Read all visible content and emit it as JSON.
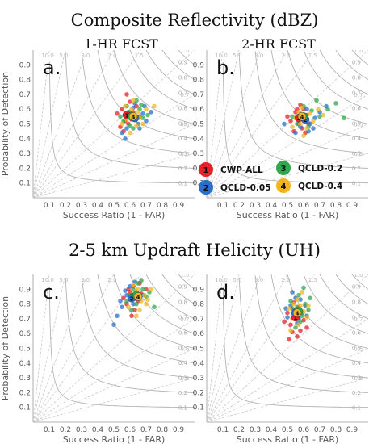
{
  "figure": {
    "sections": [
      {
        "title": "Composite Reflectivity (dBZ)"
      },
      {
        "title": "2-5 km Updraft Helicity (UH)"
      }
    ],
    "column_titles": [
      "1-HR FCST",
      "2-HR FCST"
    ],
    "legend": {
      "items": [
        {
          "number": "1",
          "label": "CWP-ALL",
          "color": "#e8202a"
        },
        {
          "number": "2",
          "label": "QCLD-0.05",
          "color": "#2a6fc9"
        },
        {
          "number": "3",
          "label": "QCLD-0.2",
          "color": "#2fa84f"
        },
        {
          "number": "4",
          "label": "QCLD-0.4",
          "color": "#f2b51f"
        }
      ]
    },
    "diagram_style": {
      "bias_lines": [
        0.3,
        0.5,
        0.7,
        1.0,
        1.5,
        2.0,
        3.0,
        5.0,
        10.0
      ],
      "csi_lines": [
        0.1,
        0.2,
        0.3,
        0.4,
        0.5,
        0.6,
        0.7,
        0.8,
        0.9
      ],
      "bias_labels": [
        "0.3",
        "0.5",
        "0.7",
        "1.0",
        "1.5",
        "2.0",
        "3.0",
        "5.0",
        "10.0"
      ],
      "csi_labels": [
        "0.1",
        "0.2",
        "0.3",
        "0.4",
        "0.5",
        "0.6",
        "0.7",
        "0.8",
        "0.9"
      ]
    }
  },
  "chart_data": [
    {
      "type": "scatter",
      "panel_label": "a.",
      "xlabel": "Success Ratio (1 - FAR)",
      "ylabel": "Probability of Detection",
      "xlim": [
        0,
        1
      ],
      "ylim": [
        0,
        1
      ],
      "x_ticks": [
        "0.1",
        "0.2",
        "0.3",
        "0.4",
        "0.5",
        "0.6",
        "0.7",
        "0.8",
        "0.9"
      ],
      "y_ticks": [
        "0.1",
        "0.2",
        "0.3",
        "0.4",
        "0.5",
        "0.6",
        "0.7",
        "0.8",
        "0.9"
      ],
      "series": [
        {
          "name": "CWP-ALL",
          "mean": [
            0.58,
            0.56
          ],
          "points": [
            [
              0.55,
              0.6
            ],
            [
              0.57,
              0.52
            ],
            [
              0.6,
              0.65
            ],
            [
              0.54,
              0.48
            ],
            [
              0.62,
              0.58
            ],
            [
              0.59,
              0.5
            ],
            [
              0.52,
              0.57
            ],
            [
              0.64,
              0.62
            ],
            [
              0.56,
              0.45
            ],
            [
              0.61,
              0.53
            ],
            [
              0.58,
              0.7
            ],
            [
              0.66,
              0.55
            ]
          ]
        },
        {
          "name": "QCLD-0.05",
          "mean": [
            0.63,
            0.54
          ],
          "points": [
            [
              0.6,
              0.58
            ],
            [
              0.65,
              0.5
            ],
            [
              0.68,
              0.57
            ],
            [
              0.58,
              0.47
            ],
            [
              0.7,
              0.52
            ],
            [
              0.62,
              0.61
            ],
            [
              0.55,
              0.44
            ],
            [
              0.73,
              0.58
            ],
            [
              0.66,
              0.47
            ],
            [
              0.63,
              0.64
            ],
            [
              0.57,
              0.4
            ],
            [
              0.69,
              0.62
            ]
          ]
        },
        {
          "name": "QCLD-0.2",
          "mean": [
            0.61,
            0.55
          ],
          "points": [
            [
              0.58,
              0.62
            ],
            [
              0.63,
              0.55
            ],
            [
              0.66,
              0.6
            ],
            [
              0.6,
              0.49
            ],
            [
              0.68,
              0.54
            ],
            [
              0.56,
              0.52
            ],
            [
              0.64,
              0.66
            ],
            [
              0.71,
              0.56
            ],
            [
              0.59,
              0.58
            ],
            [
              0.62,
              0.47
            ],
            [
              0.67,
              0.63
            ],
            [
              0.54,
              0.55
            ]
          ]
        },
        {
          "name": "QCLD-0.4",
          "mean": [
            0.62,
            0.55
          ],
          "points": [
            [
              0.61,
              0.6
            ],
            [
              0.66,
              0.54
            ],
            [
              0.58,
              0.53
            ],
            [
              0.7,
              0.6
            ],
            [
              0.64,
              0.49
            ],
            [
              0.57,
              0.62
            ],
            [
              0.68,
              0.5
            ],
            [
              0.62,
              0.66
            ],
            [
              0.75,
              0.62
            ],
            [
              0.55,
              0.5
            ],
            [
              0.65,
              0.58
            ],
            [
              0.6,
              0.44
            ]
          ]
        }
      ]
    },
    {
      "type": "scatter",
      "panel_label": "b.",
      "xlabel": "Success Ratio (1 - FAR)",
      "ylabel": "",
      "xlim": [
        0,
        1
      ],
      "ylim": [
        0,
        1
      ],
      "x_ticks": [
        "0.1",
        "0.2",
        "0.3",
        "0.4",
        "0.5",
        "0.6",
        "0.7",
        "0.8",
        "0.9"
      ],
      "y_ticks": [
        "0.1",
        "0.2",
        "0.3",
        "0.4",
        "0.5",
        "0.6",
        "0.7",
        "0.8",
        "0.9"
      ],
      "series": [
        {
          "name": "CWP-ALL",
          "mean": [
            0.57,
            0.54
          ],
          "points": [
            [
              0.55,
              0.58
            ],
            [
              0.57,
              0.5
            ],
            [
              0.6,
              0.6
            ],
            [
              0.52,
              0.52
            ],
            [
              0.59,
              0.47
            ],
            [
              0.62,
              0.56
            ],
            [
              0.54,
              0.45
            ],
            [
              0.58,
              0.63
            ],
            [
              0.5,
              0.55
            ],
            [
              0.63,
              0.5
            ],
            [
              0.56,
              0.6
            ],
            [
              0.61,
              0.44
            ]
          ]
        },
        {
          "name": "QCLD-0.05",
          "mean": [
            0.61,
            0.53
          ],
          "points": [
            [
              0.6,
              0.56
            ],
            [
              0.64,
              0.5
            ],
            [
              0.58,
              0.48
            ],
            [
              0.67,
              0.54
            ],
            [
              0.62,
              0.6
            ],
            [
              0.55,
              0.44
            ],
            [
              0.7,
              0.58
            ],
            [
              0.63,
              0.45
            ],
            [
              0.74,
              0.62
            ],
            [
              0.57,
              0.54
            ],
            [
              0.66,
              0.47
            ],
            [
              0.48,
              0.5
            ]
          ]
        },
        {
          "name": "QCLD-0.2",
          "mean": [
            0.6,
            0.55
          ],
          "points": [
            [
              0.58,
              0.57
            ],
            [
              0.62,
              0.53
            ],
            [
              0.65,
              0.59
            ],
            [
              0.56,
              0.5
            ],
            [
              0.7,
              0.55
            ],
            [
              0.6,
              0.62
            ],
            [
              0.68,
              0.66
            ],
            [
              0.53,
              0.55
            ],
            [
              0.75,
              0.6
            ],
            [
              0.63,
              0.48
            ],
            [
              0.8,
              0.64
            ],
            [
              0.85,
              0.54
            ]
          ]
        },
        {
          "name": "QCLD-0.4",
          "mean": [
            0.59,
            0.55
          ],
          "points": [
            [
              0.57,
              0.58
            ],
            [
              0.61,
              0.52
            ],
            [
              0.64,
              0.57
            ],
            [
              0.55,
              0.54
            ],
            [
              0.66,
              0.52
            ],
            [
              0.59,
              0.61
            ],
            [
              0.62,
              0.47
            ],
            [
              0.69,
              0.6
            ],
            [
              0.53,
              0.48
            ],
            [
              0.6,
              0.42
            ],
            [
              0.72,
              0.56
            ],
            [
              0.58,
              0.5
            ]
          ]
        }
      ]
    },
    {
      "type": "scatter",
      "panel_label": "c.",
      "xlabel": "Success Ratio (1 - FAR)",
      "ylabel": "Probability of Detection",
      "xlim": [
        0,
        1
      ],
      "ylim": [
        0,
        1
      ],
      "x_ticks": [
        "0.1",
        "0.2",
        "0.3",
        "0.4",
        "0.5",
        "0.6",
        "0.7",
        "0.8",
        "0.9"
      ],
      "y_ticks": [
        "0.1",
        "0.2",
        "0.3",
        "0.4",
        "0.5",
        "0.6",
        "0.7",
        "0.8",
        "0.9"
      ],
      "series": [
        {
          "name": "CWP-ALL",
          "mean": [
            0.63,
            0.85
          ],
          "points": [
            [
              0.6,
              0.88
            ],
            [
              0.65,
              0.82
            ],
            [
              0.62,
              0.92
            ],
            [
              0.58,
              0.8
            ],
            [
              0.67,
              0.87
            ],
            [
              0.63,
              0.76
            ],
            [
              0.7,
              0.9
            ],
            [
              0.56,
              0.84
            ],
            [
              0.66,
              0.94
            ],
            [
              0.61,
              0.72
            ],
            [
              0.64,
              0.86
            ],
            [
              0.59,
              0.9
            ]
          ]
        },
        {
          "name": "QCLD-0.05",
          "mean": [
            0.61,
            0.84
          ],
          "points": [
            [
              0.58,
              0.86
            ],
            [
              0.62,
              0.8
            ],
            [
              0.55,
              0.78
            ],
            [
              0.64,
              0.88
            ],
            [
              0.6,
              0.92
            ],
            [
              0.52,
              0.72
            ],
            [
              0.66,
              0.83
            ],
            [
              0.57,
              0.89
            ],
            [
              0.5,
              0.66
            ],
            [
              0.63,
              0.95
            ],
            [
              0.54,
              0.82
            ],
            [
              0.68,
              0.86
            ]
          ]
        },
        {
          "name": "QCLD-0.2",
          "mean": [
            0.64,
            0.86
          ],
          "points": [
            [
              0.62,
              0.9
            ],
            [
              0.66,
              0.84
            ],
            [
              0.6,
              0.86
            ],
            [
              0.68,
              0.9
            ],
            [
              0.64,
              0.8
            ],
            [
              0.7,
              0.85
            ],
            [
              0.58,
              0.82
            ],
            [
              0.75,
              0.78
            ],
            [
              0.65,
              0.94
            ],
            [
              0.72,
              0.88
            ],
            [
              0.61,
              0.76
            ],
            [
              0.67,
              0.96
            ]
          ]
        },
        {
          "name": "QCLD-0.4",
          "mean": [
            0.65,
            0.85
          ],
          "points": [
            [
              0.63,
              0.88
            ],
            [
              0.67,
              0.82
            ],
            [
              0.61,
              0.84
            ],
            [
              0.69,
              0.86
            ],
            [
              0.65,
              0.9
            ],
            [
              0.71,
              0.83
            ],
            [
              0.59,
              0.78
            ],
            [
              0.66,
              0.76
            ],
            [
              0.73,
              0.9
            ],
            [
              0.62,
              0.93
            ],
            [
              0.7,
              0.8
            ],
            [
              0.64,
              0.72
            ]
          ]
        }
      ]
    },
    {
      "type": "scatter",
      "panel_label": "d.",
      "xlabel": "Success Ratio (1 - FAR)",
      "ylabel": "",
      "xlim": [
        0,
        1
      ],
      "ylim": [
        0,
        1
      ],
      "x_ticks": [
        "0.1",
        "0.2",
        "0.3",
        "0.4",
        "0.5",
        "0.6",
        "0.7",
        "0.8",
        "0.9"
      ],
      "y_ticks": [
        "0.1",
        "0.2",
        "0.3",
        "0.4",
        "0.5",
        "0.6",
        "0.7",
        "0.8",
        "0.9"
      ],
      "series": [
        {
          "name": "CWP-ALL",
          "mean": [
            0.55,
            0.71
          ],
          "points": [
            [
              0.52,
              0.66
            ],
            [
              0.55,
              0.72
            ],
            [
              0.58,
              0.62
            ],
            [
              0.5,
              0.74
            ],
            [
              0.56,
              0.58
            ],
            [
              0.6,
              0.69
            ],
            [
              0.53,
              0.61
            ],
            [
              0.48,
              0.68
            ],
            [
              0.57,
              0.78
            ],
            [
              0.62,
              0.64
            ],
            [
              0.51,
              0.56
            ],
            [
              0.54,
              0.81
            ]
          ]
        },
        {
          "name": "QCLD-0.05",
          "mean": [
            0.55,
            0.74
          ],
          "points": [
            [
              0.54,
              0.76
            ],
            [
              0.57,
              0.7
            ],
            [
              0.52,
              0.79
            ],
            [
              0.59,
              0.74
            ],
            [
              0.55,
              0.84
            ],
            [
              0.5,
              0.71
            ],
            [
              0.61,
              0.79
            ],
            [
              0.56,
              0.67
            ],
            [
              0.53,
              0.88
            ],
            [
              0.58,
              0.83
            ],
            [
              0.49,
              0.77
            ],
            [
              0.62,
              0.72
            ]
          ]
        },
        {
          "name": "QCLD-0.2",
          "mean": [
            0.57,
            0.75
          ],
          "points": [
            [
              0.56,
              0.78
            ],
            [
              0.59,
              0.72
            ],
            [
              0.54,
              0.74
            ],
            [
              0.61,
              0.8
            ],
            [
              0.57,
              0.86
            ],
            [
              0.63,
              0.76
            ],
            [
              0.52,
              0.82
            ],
            [
              0.58,
              0.68
            ],
            [
              0.6,
              0.91
            ],
            [
              0.55,
              0.64
            ],
            [
              0.64,
              0.84
            ],
            [
              0.53,
              0.77
            ]
          ]
        },
        {
          "name": "QCLD-0.4",
          "mean": [
            0.56,
            0.74
          ],
          "points": [
            [
              0.55,
              0.74
            ],
            [
              0.58,
              0.79
            ],
            [
              0.53,
              0.7
            ],
            [
              0.6,
              0.75
            ],
            [
              0.56,
              0.83
            ],
            [
              0.51,
              0.77
            ],
            [
              0.62,
              0.71
            ],
            [
              0.57,
              0.66
            ],
            [
              0.59,
              0.88
            ],
            [
              0.54,
              0.8
            ],
            [
              0.63,
              0.79
            ],
            [
              0.52,
              0.62
            ]
          ]
        }
      ]
    }
  ]
}
